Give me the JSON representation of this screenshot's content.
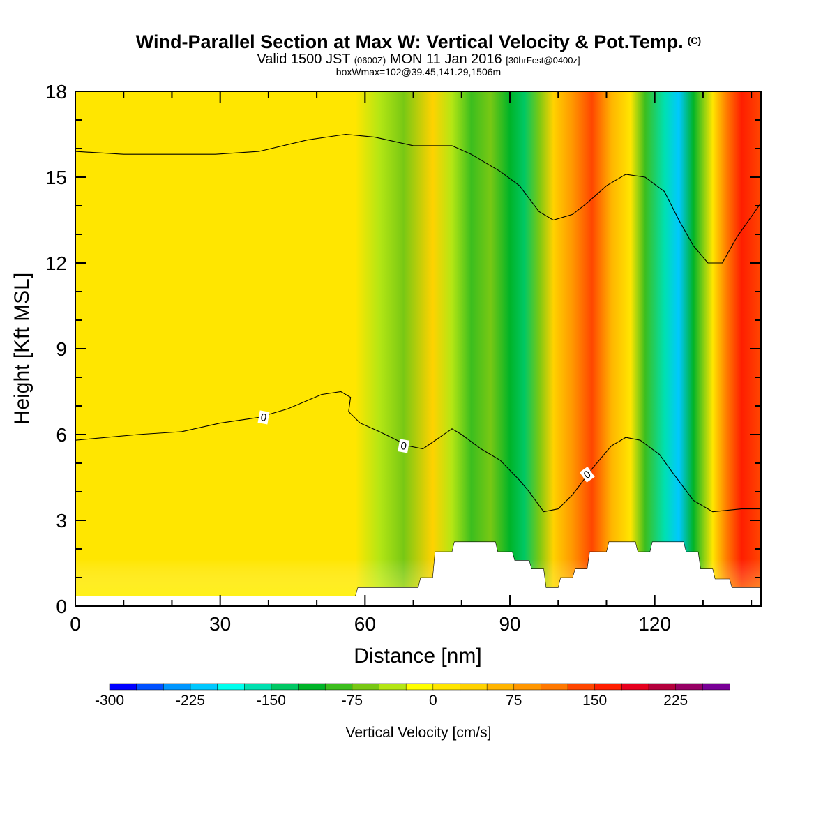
{
  "header": {
    "title": "Wind-Parallel Section at Max W: Vertical Velocity & Pot.Temp.",
    "title_mark": "(C)",
    "valid_pre": "Valid 1500 JST",
    "valid_utc": "(0600Z)",
    "valid_date": "MON 11 Jan 2016",
    "valid_fcst": "[30hrFcst@0400z]",
    "box_info": "boxWmax=102@39.45,141.29,1506m"
  },
  "chart_data": {
    "type": "heatmap",
    "xlabel": "Distance [nm]",
    "ylabel": "Height [Kft MSL]",
    "xlim": [
      0,
      142
    ],
    "ylim": [
      0,
      18
    ],
    "x_ticks": [
      "0",
      "30",
      "60",
      "90",
      "120"
    ],
    "y_ticks": [
      "0",
      "3",
      "6",
      "9",
      "12",
      "15",
      "18"
    ],
    "colorbar": {
      "title": "Vertical Velocity [cm/s]",
      "min": -300,
      "max": 275,
      "step": 25,
      "labels": [
        "-300",
        "-225",
        "-150",
        "-75",
        "0",
        "75",
        "150",
        "225"
      ],
      "colors": [
        "#0000ff",
        "#0050ff",
        "#0096ff",
        "#00c8ff",
        "#00ffee",
        "#00e0b0",
        "#00c864",
        "#00b428",
        "#3cbe1e",
        "#78c814",
        "#b4e614",
        "#ffff00",
        "#ffe600",
        "#ffd200",
        "#ffb400",
        "#ff9600",
        "#ff7800",
        "#ff4600",
        "#ff1e00",
        "#e6001e",
        "#b4003c",
        "#960064",
        "#780096"
      ]
    },
    "velocity_bands": [
      {
        "x": 0,
        "w": 0
      },
      {
        "x": 9,
        "w": 12
      },
      {
        "x": 22,
        "w": 18
      },
      {
        "x": 40,
        "w": 16
      },
      {
        "x": 46,
        "w": 20
      },
      {
        "x": 52,
        "w": 14
      },
      {
        "x": 58,
        "w": 4
      },
      {
        "x": 63,
        "w": -35
      },
      {
        "x": 68,
        "w": -65
      },
      {
        "x": 74,
        "w": 25
      },
      {
        "x": 78,
        "w": -40
      },
      {
        "x": 82,
        "w": -100
      },
      {
        "x": 86,
        "w": -75
      },
      {
        "x": 90,
        "w": -115
      },
      {
        "x": 93,
        "w": -150
      },
      {
        "x": 96,
        "w": -60
      },
      {
        "x": 99,
        "w": 45
      },
      {
        "x": 103,
        "w": 95
      },
      {
        "x": 107,
        "w": 135
      },
      {
        "x": 111,
        "w": 70
      },
      {
        "x": 115,
        "w": 15
      },
      {
        "x": 118,
        "w": -90
      },
      {
        "x": 122,
        "w": -170
      },
      {
        "x": 125,
        "w": -215
      },
      {
        "x": 128,
        "w": -120
      },
      {
        "x": 132,
        "w": 20
      },
      {
        "x": 135,
        "w": 100
      },
      {
        "x": 138,
        "w": 160
      },
      {
        "x": 142,
        "w": 125
      }
    ],
    "theta_contours": [
      {
        "label": "",
        "points": [
          [
            0,
            15.9
          ],
          [
            10,
            15.8
          ],
          [
            20,
            15.8
          ],
          [
            29,
            15.8
          ],
          [
            38,
            15.9
          ],
          [
            48,
            16.3
          ],
          [
            56,
            16.5
          ],
          [
            62,
            16.4
          ],
          [
            70,
            16.1
          ],
          [
            78,
            16.1
          ],
          [
            82,
            15.8
          ],
          [
            88,
            15.2
          ],
          [
            92,
            14.7
          ],
          [
            96,
            13.8
          ],
          [
            99,
            13.5
          ],
          [
            103,
            13.7
          ],
          [
            106,
            14.1
          ],
          [
            110,
            14.7
          ],
          [
            114,
            15.1
          ],
          [
            118,
            15.0
          ],
          [
            122,
            14.5
          ],
          [
            125,
            13.5
          ],
          [
            128,
            12.6
          ],
          [
            131,
            12.0
          ],
          [
            134,
            12.0
          ],
          [
            137,
            12.9
          ],
          [
            142,
            14.1
          ]
        ]
      },
      {
        "label": "0",
        "points": [
          [
            0,
            5.8
          ],
          [
            13,
            6.0
          ],
          [
            22,
            6.1
          ],
          [
            30,
            6.4
          ],
          [
            38,
            6.6
          ],
          [
            44,
            6.9
          ],
          [
            51,
            7.4
          ],
          [
            55,
            7.5
          ],
          [
            57,
            7.3
          ],
          [
            56.6,
            6.8
          ],
          [
            59,
            6.4
          ],
          [
            63,
            6.1
          ],
          [
            69,
            5.6
          ],
          [
            72,
            5.5
          ],
          [
            78,
            6.2
          ],
          [
            80,
            6.0
          ],
          [
            84,
            5.5
          ],
          [
            88,
            5.1
          ],
          [
            92,
            4.4
          ],
          [
            94,
            4.0
          ],
          [
            97,
            3.3
          ],
          [
            100,
            3.4
          ],
          [
            103,
            3.9
          ],
          [
            107,
            4.8
          ],
          [
            111,
            5.6
          ],
          [
            114,
            5.9
          ],
          [
            117,
            5.8
          ],
          [
            121,
            5.3
          ],
          [
            124,
            4.6
          ],
          [
            128,
            3.7
          ],
          [
            132,
            3.3
          ],
          [
            138,
            3.4
          ],
          [
            142,
            3.4
          ]
        ],
        "label_positions": [
          [
            39,
            6.6
          ],
          [
            68,
            5.6
          ],
          [
            106,
            4.6
          ]
        ]
      }
    ],
    "terrain": [
      [
        0,
        0.35
      ],
      [
        58,
        0.35
      ],
      [
        58.5,
        0.65
      ],
      [
        71,
        0.65
      ],
      [
        71.5,
        1.0
      ],
      [
        74,
        1.0
      ],
      [
        74.5,
        1.9
      ],
      [
        78,
        1.9
      ],
      [
        78.5,
        2.25
      ],
      [
        87,
        2.25
      ],
      [
        87.5,
        1.9
      ],
      [
        90.5,
        1.9
      ],
      [
        91,
        1.6
      ],
      [
        94,
        1.6
      ],
      [
        94.5,
        1.3
      ],
      [
        97,
        1.3
      ],
      [
        97.5,
        0.65
      ],
      [
        100,
        0.65
      ],
      [
        100.5,
        1.0
      ],
      [
        103,
        1.0
      ],
      [
        103.5,
        1.3
      ],
      [
        106,
        1.3
      ],
      [
        106.5,
        1.9
      ],
      [
        110,
        1.9
      ],
      [
        110.5,
        2.25
      ],
      [
        116,
        2.25
      ],
      [
        116.5,
        1.9
      ],
      [
        119,
        1.9
      ],
      [
        119.5,
        2.25
      ],
      [
        126,
        2.25
      ],
      [
        126.5,
        1.9
      ],
      [
        129,
        1.9
      ],
      [
        129.5,
        1.3
      ],
      [
        132,
        1.3
      ],
      [
        132.5,
        0.95
      ],
      [
        135.5,
        0.95
      ],
      [
        136,
        0.65
      ],
      [
        142,
        0.65
      ]
    ]
  }
}
